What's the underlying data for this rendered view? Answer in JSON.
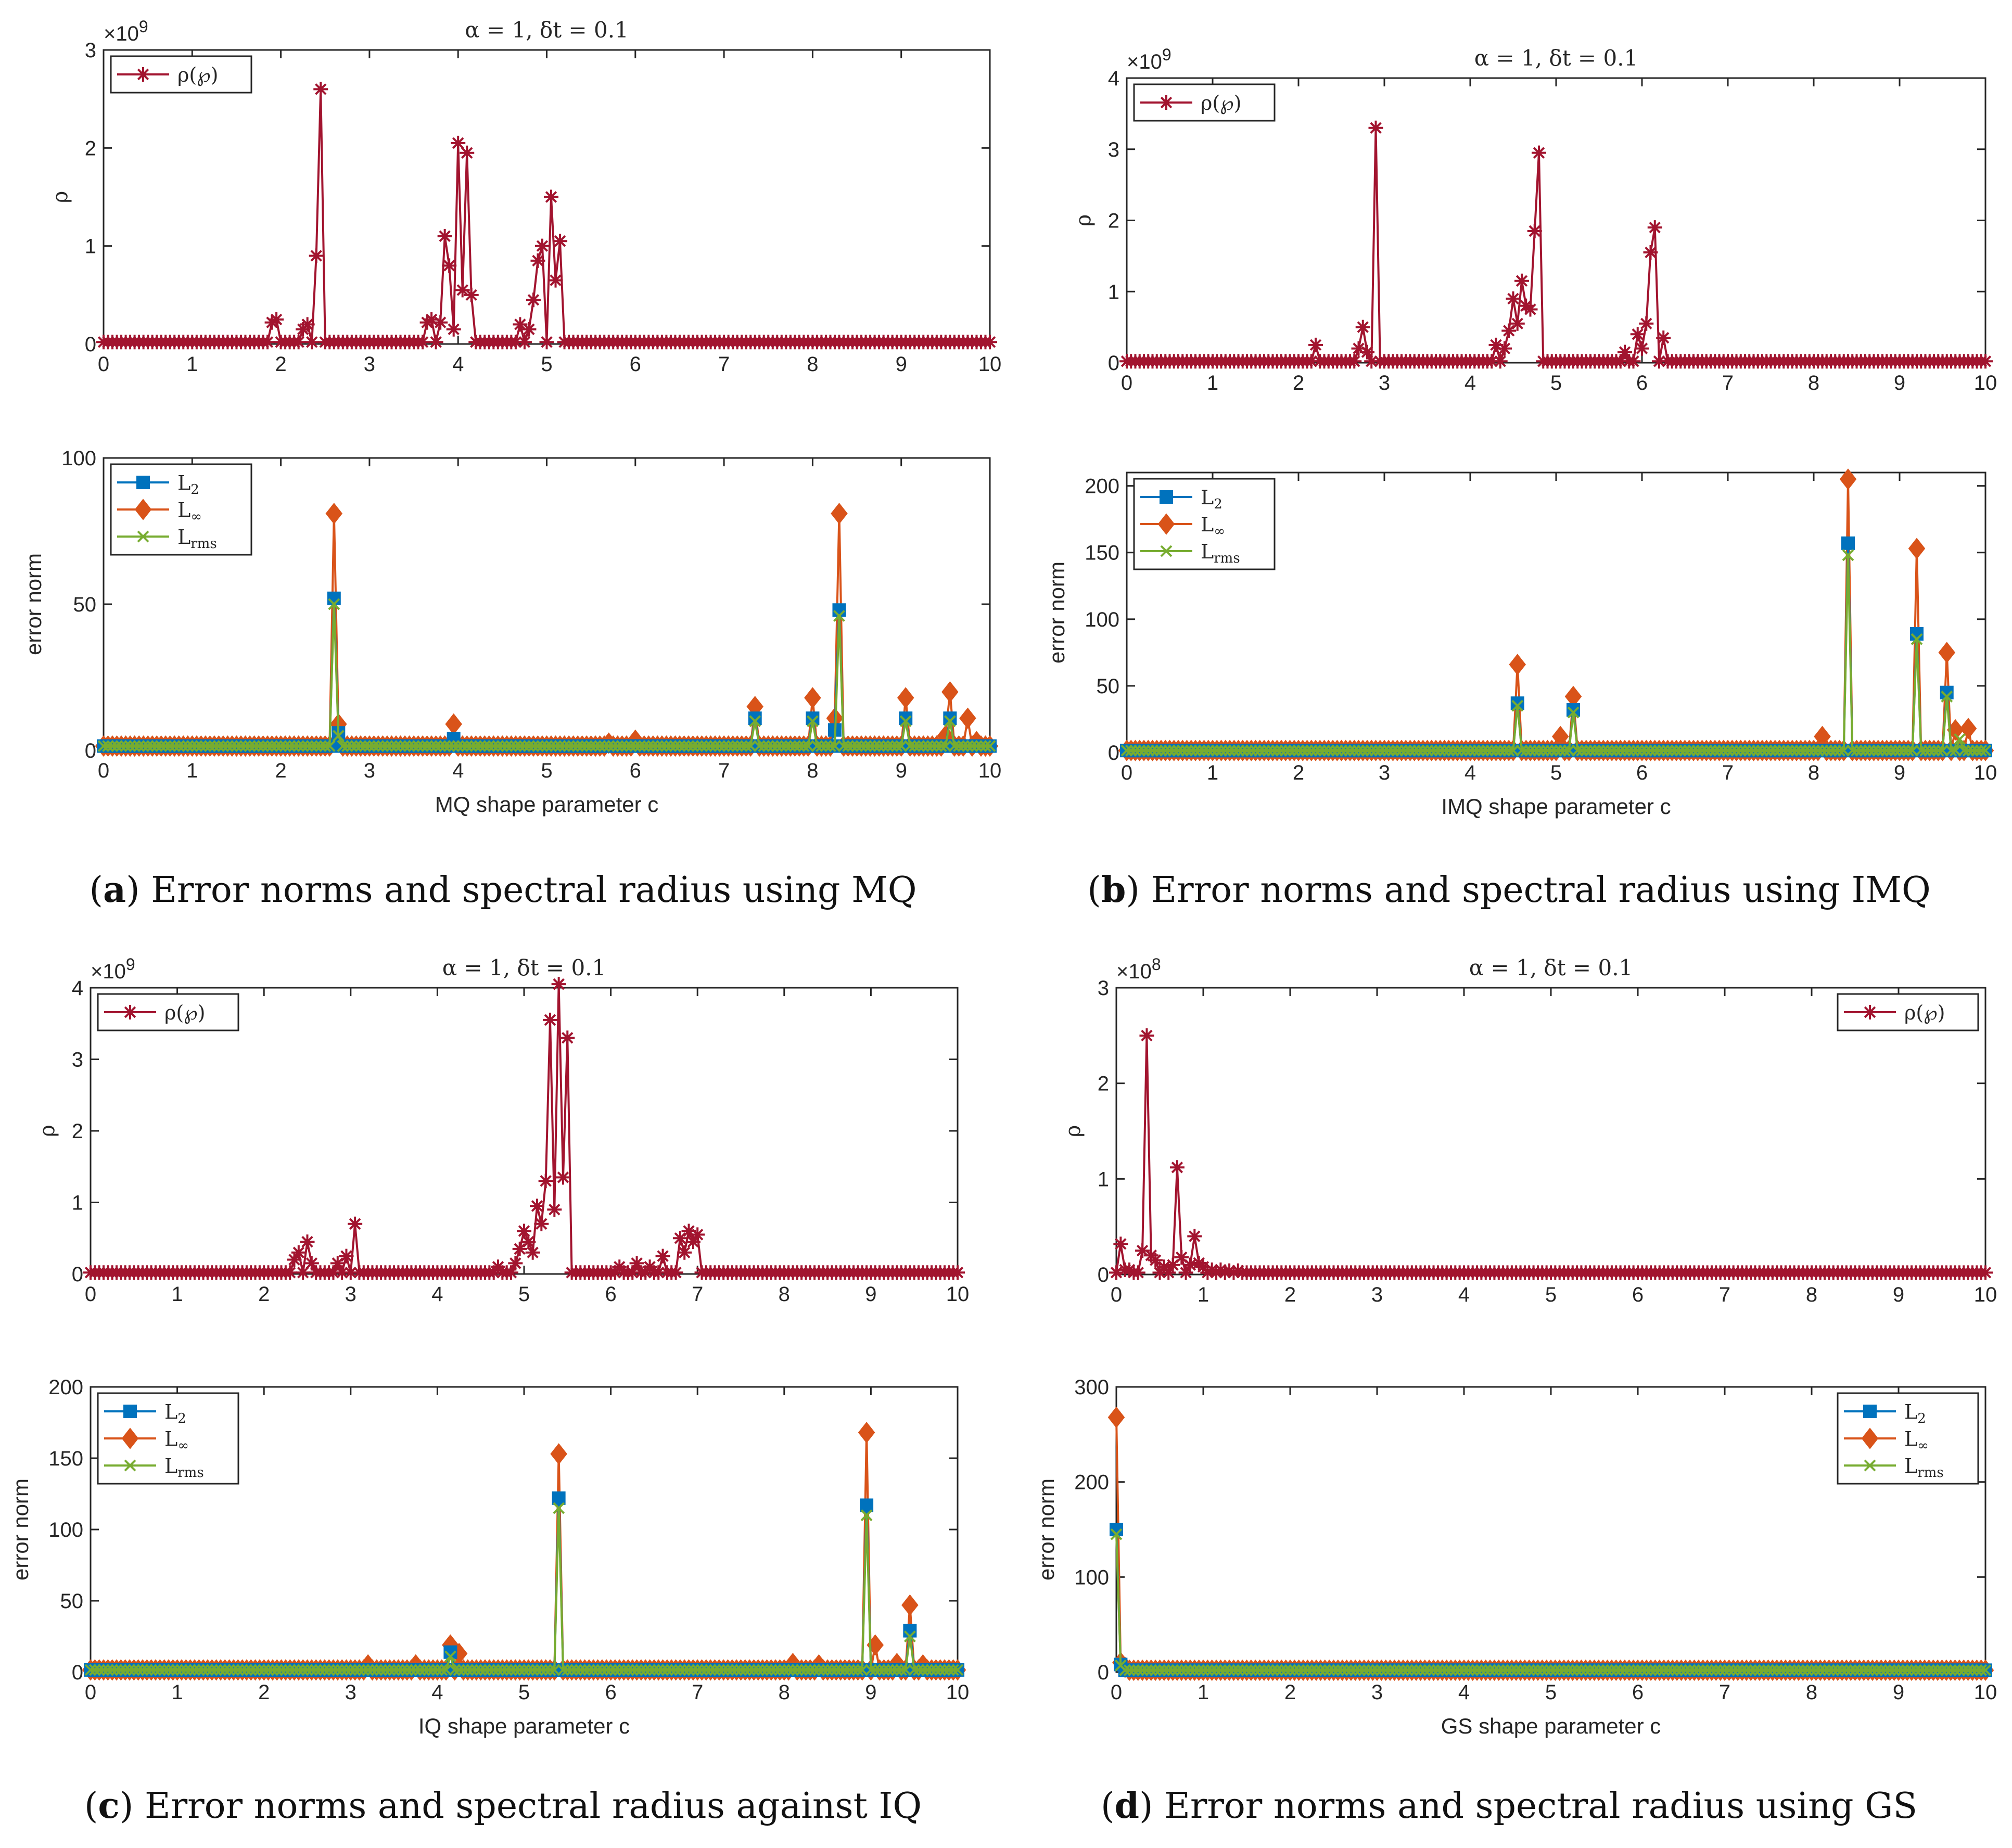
{
  "colors": {
    "rho": "#A2142F",
    "L2": "#0072BD",
    "Linf": "#D95319",
    "Lrms": "#77AC30",
    "axis": "#262626",
    "bg": "#ffffff"
  },
  "panels": [
    {
      "letter": "a",
      "caption_text": "Error norms and spectral radius using MQ",
      "top": {
        "title": "α = 1, δt = 0.1",
        "exponent_base": "×10",
        "exponent_power": "9",
        "ylabel": "ρ",
        "ylim": [
          0,
          3
        ],
        "yticks": [
          "0",
          "1",
          "2",
          "3"
        ],
        "legend_position": "top-left"
      },
      "bottom": {
        "xlabel": "MQ shape parameter c",
        "ylabel": "error norm",
        "ylim": [
          0,
          100
        ],
        "yticks": [
          "0",
          "50",
          "100"
        ],
        "legend_position": "top-left"
      }
    },
    {
      "letter": "b",
      "caption_text": "Error norms and spectral radius using IMQ",
      "top": {
        "title": "α = 1, δt = 0.1",
        "exponent_base": "×10",
        "exponent_power": "9",
        "ylabel": "ρ",
        "ylim": [
          0,
          4
        ],
        "yticks": [
          "0",
          "1",
          "2",
          "3",
          "4"
        ],
        "legend_position": "top-left"
      },
      "bottom": {
        "xlabel": "IMQ shape parameter c",
        "ylabel": "error norm",
        "ylim": [
          0,
          210
        ],
        "yticks": [
          "0",
          "50",
          "100",
          "150",
          "200"
        ],
        "legend_position": "top-left"
      }
    },
    {
      "letter": "c",
      "caption_text": "Error norms and spectral radius against IQ",
      "top": {
        "title": "α = 1, δt = 0.1",
        "exponent_base": "×10",
        "exponent_power": "9",
        "ylabel": "ρ",
        "ylim": [
          0,
          4
        ],
        "yticks": [
          "0",
          "1",
          "2",
          "3",
          "4"
        ],
        "legend_position": "top-left"
      },
      "bottom": {
        "xlabel": "IQ shape parameter c",
        "ylabel": "error norm",
        "ylim": [
          0,
          200
        ],
        "yticks": [
          "0",
          "50",
          "100",
          "150",
          "200"
        ],
        "legend_position": "top-left"
      }
    },
    {
      "letter": "d",
      "caption_text": "Error norms and spectral radius using GS",
      "top": {
        "title": "α = 1, δt = 0.1",
        "exponent_base": "×10",
        "exponent_power": "8",
        "ylabel": "ρ",
        "ylim": [
          0,
          3
        ],
        "yticks": [
          "0",
          "1",
          "2",
          "3"
        ],
        "legend_position": "top-right"
      },
      "bottom": {
        "xlabel": "GS shape parameter c",
        "ylabel": "error norm",
        "ylim": [
          0,
          300
        ],
        "yticks": [
          "0",
          "100",
          "200",
          "300"
        ],
        "legend_position": "top-right"
      }
    }
  ],
  "legend": {
    "rho": "ρ(℘)",
    "L2": "L",
    "L2_sub": "2",
    "Linf": "L",
    "Linf_sub": "∞",
    "Lrms": "L",
    "Lrms_sub": "rms"
  },
  "xticks": [
    "0",
    "1",
    "2",
    "3",
    "4",
    "5",
    "6",
    "7",
    "8",
    "9",
    "10"
  ],
  "chart_data": [
    {
      "type": "line",
      "panel": "a",
      "name": "spectral radius",
      "xlim": [
        0,
        10
      ],
      "ylim": [
        0,
        3
      ],
      "y_scale": "1e9",
      "x_step": 0.05,
      "baseline": 0.02,
      "series": [
        {
          "name": "ρ(℘)",
          "spikes": [
            [
              1.9,
              0.22
            ],
            [
              1.95,
              0.25
            ],
            [
              2.25,
              0.15
            ],
            [
              2.3,
              0.2
            ],
            [
              2.4,
              0.9
            ],
            [
              2.45,
              2.6
            ],
            [
              3.65,
              0.22
            ],
            [
              3.7,
              0.25
            ],
            [
              3.8,
              0.22
            ],
            [
              3.85,
              1.1
            ],
            [
              3.9,
              0.8
            ],
            [
              3.95,
              0.15
            ],
            [
              4.0,
              2.05
            ],
            [
              4.05,
              0.55
            ],
            [
              4.1,
              1.95
            ],
            [
              4.15,
              0.5
            ],
            [
              4.7,
              0.2
            ],
            [
              4.8,
              0.15
            ],
            [
              4.85,
              0.45
            ],
            [
              4.9,
              0.85
            ],
            [
              4.95,
              1.0
            ],
            [
              5.05,
              1.5
            ],
            [
              5.1,
              0.65
            ],
            [
              5.15,
              1.05
            ]
          ]
        }
      ]
    },
    {
      "type": "line",
      "panel": "a",
      "name": "error norms",
      "xlim": [
        0,
        10
      ],
      "ylim": [
        0,
        100
      ],
      "x_step": 0.05,
      "baseline": 1.5,
      "series": [
        {
          "name": "L2",
          "spikes": [
            [
              2.6,
              52
            ],
            [
              2.65,
              6
            ],
            [
              3.95,
              4
            ],
            [
              7.35,
              11
            ],
            [
              8.0,
              11
            ],
            [
              8.25,
              7
            ],
            [
              8.3,
              48
            ],
            [
              9.05,
              11
            ],
            [
              9.55,
              11
            ]
          ]
        },
        {
          "name": "L∞",
          "spikes": [
            [
              2.6,
              81
            ],
            [
              2.65,
              9
            ],
            [
              3.95,
              9
            ],
            [
              5.7,
              2.5
            ],
            [
              6.0,
              3.5
            ],
            [
              7.35,
              15
            ],
            [
              8.0,
              18
            ],
            [
              8.25,
              11
            ],
            [
              8.3,
              81
            ],
            [
              9.05,
              18
            ],
            [
              9.5,
              5
            ],
            [
              9.55,
              20
            ],
            [
              9.75,
              11
            ],
            [
              9.85,
              3
            ]
          ]
        },
        {
          "name": "Lrms",
          "spikes": [
            [
              2.6,
              50
            ],
            [
              2.65,
              5
            ],
            [
              7.35,
              10
            ],
            [
              8.0,
              10
            ],
            [
              8.3,
              46
            ],
            [
              9.05,
              10
            ],
            [
              9.55,
              10
            ]
          ]
        }
      ]
    },
    {
      "type": "line",
      "panel": "b",
      "name": "spectral radius",
      "xlim": [
        0,
        10
      ],
      "ylim": [
        0,
        4
      ],
      "y_scale": "1e9",
      "x_step": 0.05,
      "baseline": 0.02,
      "series": [
        {
          "name": "ρ(℘)",
          "spikes": [
            [
              2.2,
              0.25
            ],
            [
              2.7,
              0.2
            ],
            [
              2.75,
              0.5
            ],
            [
              2.8,
              0.15
            ],
            [
              2.9,
              3.3
            ],
            [
              4.3,
              0.25
            ],
            [
              4.4,
              0.2
            ],
            [
              4.45,
              0.45
            ],
            [
              4.5,
              0.9
            ],
            [
              4.55,
              0.55
            ],
            [
              4.6,
              1.15
            ],
            [
              4.65,
              0.8
            ],
            [
              4.7,
              0.75
            ],
            [
              4.75,
              1.85
            ],
            [
              4.8,
              2.95
            ],
            [
              5.8,
              0.15
            ],
            [
              5.95,
              0.4
            ],
            [
              6.0,
              0.2
            ],
            [
              6.05,
              0.55
            ],
            [
              6.1,
              1.55
            ],
            [
              6.15,
              1.9
            ],
            [
              6.25,
              0.35
            ]
          ]
        }
      ]
    },
    {
      "type": "line",
      "panel": "b",
      "name": "error norms",
      "xlim": [
        0,
        10
      ],
      "ylim": [
        0,
        210
      ],
      "x_step": 0.05,
      "baseline": 1.5,
      "series": [
        {
          "name": "L2",
          "spikes": [
            [
              4.55,
              37
            ],
            [
              5.2,
              32
            ],
            [
              8.4,
              157
            ],
            [
              9.2,
              89
            ],
            [
              9.55,
              45
            ]
          ]
        },
        {
          "name": "L∞",
          "spikes": [
            [
              4.55,
              66
            ],
            [
              5.05,
              12
            ],
            [
              5.2,
              42
            ],
            [
              8.1,
              12
            ],
            [
              8.4,
              205
            ],
            [
              9.2,
              153
            ],
            [
              9.55,
              75
            ],
            [
              9.65,
              17
            ],
            [
              9.8,
              18
            ]
          ]
        },
        {
          "name": "Lrms",
          "spikes": [
            [
              4.55,
              35
            ],
            [
              5.2,
              30
            ],
            [
              8.4,
              148
            ],
            [
              9.2,
              85
            ],
            [
              9.55,
              42
            ],
            [
              9.7,
              10
            ]
          ]
        }
      ]
    },
    {
      "type": "line",
      "panel": "c",
      "name": "spectral radius",
      "xlim": [
        0,
        10
      ],
      "ylim": [
        0,
        4
      ],
      "y_scale": "1e9",
      "x_step": 0.05,
      "baseline": 0.02,
      "series": [
        {
          "name": "ρ(℘)",
          "spikes": [
            [
              2.35,
              0.2
            ],
            [
              2.4,
              0.3
            ],
            [
              2.5,
              0.45
            ],
            [
              2.55,
              0.15
            ],
            [
              2.85,
              0.15
            ],
            [
              2.95,
              0.25
            ],
            [
              3.05,
              0.7
            ],
            [
              4.7,
              0.1
            ],
            [
              4.9,
              0.15
            ],
            [
              4.95,
              0.35
            ],
            [
              5.0,
              0.6
            ],
            [
              5.05,
              0.45
            ],
            [
              5.1,
              0.3
            ],
            [
              5.15,
              0.95
            ],
            [
              5.2,
              0.7
            ],
            [
              5.25,
              1.3
            ],
            [
              5.3,
              3.55
            ],
            [
              5.35,
              0.9
            ],
            [
              5.4,
              4.05
            ],
            [
              5.45,
              1.35
            ],
            [
              5.5,
              3.3
            ],
            [
              6.1,
              0.1
            ],
            [
              6.3,
              0.15
            ],
            [
              6.45,
              0.1
            ],
            [
              6.6,
              0.25
            ],
            [
              6.8,
              0.5
            ],
            [
              6.85,
              0.3
            ],
            [
              6.9,
              0.6
            ],
            [
              6.95,
              0.45
            ],
            [
              7.0,
              0.55
            ]
          ]
        }
      ]
    },
    {
      "type": "line",
      "panel": "c",
      "name": "error norms",
      "xlim": [
        0,
        10
      ],
      "ylim": [
        0,
        200
      ],
      "x_step": 0.05,
      "baseline": 1.5,
      "series": [
        {
          "name": "L2",
          "spikes": [
            [
              4.15,
              14
            ],
            [
              5.4,
              122
            ],
            [
              8.95,
              117
            ],
            [
              9.45,
              29
            ]
          ]
        },
        {
          "name": "L∞",
          "spikes": [
            [
              3.2,
              5
            ],
            [
              3.75,
              5
            ],
            [
              4.15,
              19
            ],
            [
              4.25,
              13
            ],
            [
              5.4,
              153
            ],
            [
              8.1,
              6
            ],
            [
              8.4,
              5
            ],
            [
              8.95,
              168
            ],
            [
              9.05,
              19
            ],
            [
              9.3,
              6
            ],
            [
              9.45,
              47
            ],
            [
              9.6,
              5
            ]
          ]
        },
        {
          "name": "Lrms",
          "spikes": [
            [
              4.15,
              11
            ],
            [
              5.4,
              115
            ],
            [
              8.95,
              110
            ],
            [
              9.45,
              25
            ]
          ]
        }
      ]
    },
    {
      "type": "line",
      "panel": "d",
      "name": "spectral radius",
      "xlim": [
        0,
        10
      ],
      "ylim": [
        0,
        3
      ],
      "y_scale": "1e8",
      "x_step": 0.05,
      "baseline": 0.02,
      "series": [
        {
          "name": "ρ(℘)",
          "spikes": [
            [
              0.05,
              0.32
            ],
            [
              0.1,
              0.05
            ],
            [
              0.15,
              0.05
            ],
            [
              0.3,
              0.25
            ],
            [
              0.35,
              2.5
            ],
            [
              0.4,
              0.2
            ],
            [
              0.45,
              0.15
            ],
            [
              0.55,
              0.08
            ],
            [
              0.65,
              0.1
            ],
            [
              0.7,
              1.12
            ],
            [
              0.75,
              0.18
            ],
            [
              0.85,
              0.1
            ],
            [
              0.9,
              0.4
            ],
            [
              0.95,
              0.12
            ],
            [
              1.0,
              0.08
            ],
            [
              1.1,
              0.05
            ],
            [
              1.2,
              0.05
            ],
            [
              1.3,
              0.04
            ],
            [
              1.4,
              0.04
            ]
          ]
        }
      ]
    },
    {
      "type": "line",
      "panel": "d",
      "name": "error norms",
      "xlim": [
        0,
        10
      ],
      "ylim": [
        0,
        300
      ],
      "x_step": 0.05,
      "baseline": 2,
      "series": [
        {
          "name": "L2",
          "spikes": [
            [
              0.0,
              150
            ],
            [
              0.05,
              8
            ]
          ]
        },
        {
          "name": "L∞",
          "spikes": [
            [
              0.0,
              268
            ],
            [
              0.05,
              10
            ],
            [
              0.1,
              5
            ]
          ]
        },
        {
          "name": "Lrms",
          "spikes": [
            [
              0.0,
              145
            ],
            [
              0.05,
              7
            ]
          ]
        }
      ]
    }
  ]
}
